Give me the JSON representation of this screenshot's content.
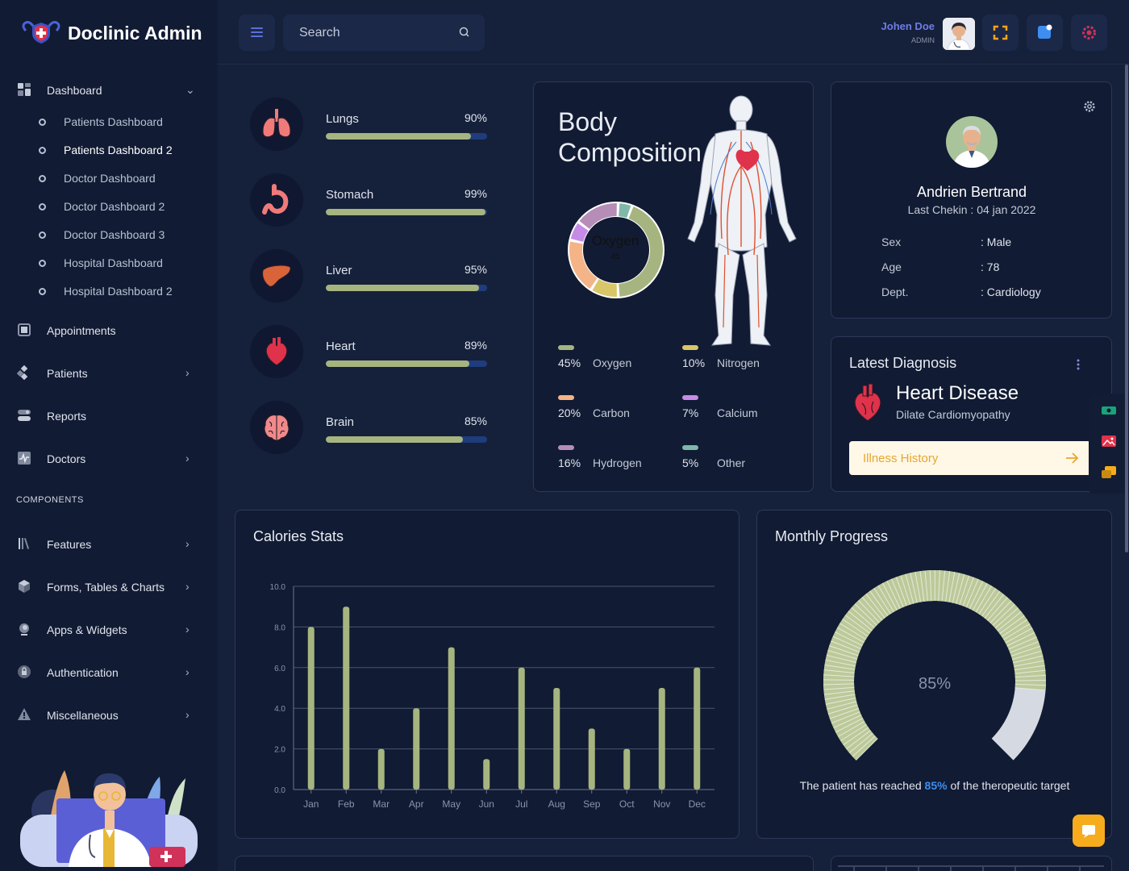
{
  "brand": {
    "title": "Doclinic Admin"
  },
  "sidebar": {
    "dashboard_label": "Dashboard",
    "sub_items": [
      {
        "label": "Patients Dashboard"
      },
      {
        "label": "Patients Dashboard 2"
      },
      {
        "label": "Doctor Dashboard"
      },
      {
        "label": "Doctor Dashboard 2"
      },
      {
        "label": "Doctor Dashboard 3"
      },
      {
        "label": "Hospital Dashboard"
      },
      {
        "label": "Hospital Dashboard 2"
      }
    ],
    "items": [
      {
        "label": "Appointments"
      },
      {
        "label": "Patients"
      },
      {
        "label": "Reports"
      },
      {
        "label": "Doctors"
      }
    ],
    "section_label": "COMPONENTS",
    "component_items": [
      {
        "label": "Features"
      },
      {
        "label": "Forms, Tables & Charts"
      },
      {
        "label": "Apps & Widgets"
      },
      {
        "label": "Authentication"
      },
      {
        "label": "Miscellaneous"
      }
    ]
  },
  "header": {
    "search_placeholder": "Search",
    "user_name": "Johen Doe",
    "user_role": "ADMIN"
  },
  "organs": [
    {
      "name": "Lungs",
      "pct_label": "90%",
      "value": 0.9
    },
    {
      "name": "Stomach",
      "pct_label": "99%",
      "value": 0.99
    },
    {
      "name": "Liver",
      "pct_label": "95%",
      "value": 0.95
    },
    {
      "name": "Heart",
      "pct_label": "89%",
      "value": 0.89
    },
    {
      "name": "Brain",
      "pct_label": "85%",
      "value": 0.85
    }
  ],
  "body_composition": {
    "title": "Body Composition",
    "donut_label": "Oxygen",
    "donut_value": "45",
    "segments": [
      {
        "pct": "45%",
        "name": "Oxygen",
        "value": 45,
        "color": "#a6b57f"
      },
      {
        "pct": "10%",
        "name": "Nitrogen",
        "value": 10,
        "color": "#d8c669"
      },
      {
        "pct": "20%",
        "name": "Carbon",
        "value": 20,
        "color": "#f4b487"
      },
      {
        "pct": "7%",
        "name": "Calcium",
        "value": 7,
        "color": "#c68be6"
      },
      {
        "pct": "16%",
        "name": "Hydrogen",
        "value": 16,
        "color": "#b68db7"
      },
      {
        "pct": "5%",
        "name": "Other",
        "value": 5,
        "color": "#7fb8a8"
      }
    ]
  },
  "patient": {
    "name": "Andrien Bertrand",
    "last_checkin": "Last Chekin : 04 jan 2022",
    "fields": [
      {
        "key": "Sex",
        "value": ": Male"
      },
      {
        "key": "Age",
        "value": ": 78"
      },
      {
        "key": "Dept.",
        "value": ": Cardiology"
      }
    ]
  },
  "diagnosis": {
    "title": "Latest Diagnosis",
    "disease": "Heart Disease",
    "subtitle": "Dilate Cardiomyopathy",
    "button_label": "Illness History"
  },
  "chart_data": {
    "type": "bar",
    "title": "Calories Stats",
    "categories": [
      "Jan",
      "Feb",
      "Mar",
      "Apr",
      "May",
      "Jun",
      "Jul",
      "Aug",
      "Sep",
      "Oct",
      "Nov",
      "Dec"
    ],
    "values": [
      8,
      9,
      2,
      4,
      7,
      1.5,
      6,
      5,
      3,
      2,
      5,
      6
    ],
    "ylim": [
      0,
      10
    ],
    "yticks": [
      "0.0",
      "2.0",
      "4.0",
      "6.0",
      "8.0",
      "10.0"
    ],
    "color": "#a6b57f",
    "grid": true
  },
  "monthly_progress": {
    "title": "Monthly Progress",
    "value": 0.85,
    "value_label": "85%",
    "note_prefix": "The patient has reached",
    "note_highlight": "85%",
    "note_suffix": "of the theropeutic target"
  }
}
